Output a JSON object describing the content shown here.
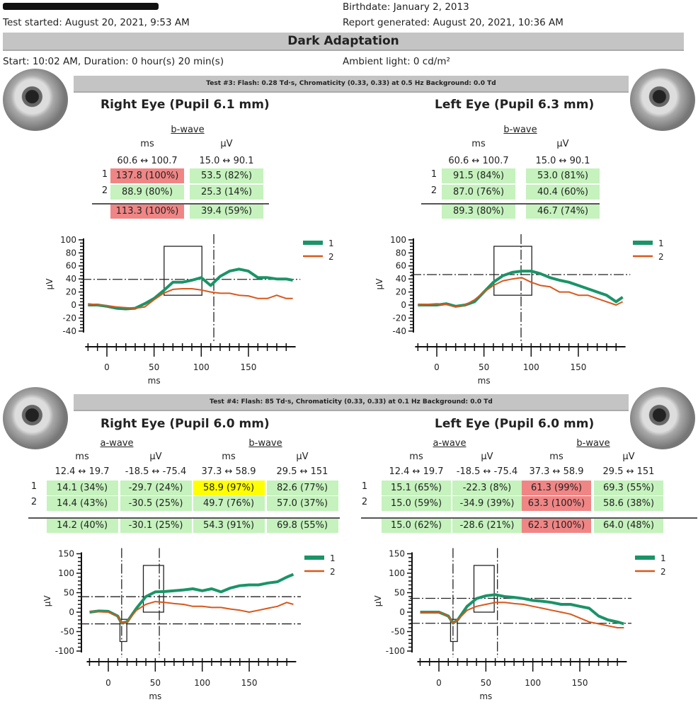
{
  "header": {
    "birthdate": "Birthdate: January 2, 2013",
    "test_started": "Test started: August 20, 2021, 9:53 AM",
    "report_generated": "Report generated: August 20, 2021, 10:36 AM",
    "section_title": "Dark Adaptation",
    "start_info": "Start: 10:02 AM, Duration: 0 hour(s) 20 min(s)",
    "ambient_light": "Ambient light: 0 cd/m²"
  },
  "colors": {
    "series1": "#1a9468",
    "series2": "#d8581c",
    "normal": "#c5f2bd",
    "abnormal": "#f08585",
    "borderline": "#ffff00"
  },
  "tests": [
    {
      "banner": "Test #3:  Flash: 0.28 Td·s, Chromaticity (0.33, 0.33) at 0.5 Hz   Background: 0.0 Td",
      "right": {
        "title": "Right Eye (Pupil 6.1 mm)",
        "waves": [
          "b-wave"
        ],
        "units": [
          "ms",
          "µV"
        ],
        "ranges": [
          "60.6 ↔ 100.7",
          "15.0 ↔ 90.1"
        ],
        "rows": [
          {
            "label": "1",
            "cells": [
              {
                "text": "137.8 (100%)",
                "status": "red"
              },
              {
                "text": "53.5 (82%)",
                "status": "green"
              }
            ]
          },
          {
            "label": "2",
            "cells": [
              {
                "text": "88.9 (80%)",
                "status": "green"
              },
              {
                "text": "25.3 (14%)",
                "status": "green"
              }
            ]
          },
          {
            "label": "",
            "cells": [
              {
                "text": "113.3 (100%)",
                "status": "red"
              },
              {
                "text": "39.4 (59%)",
                "status": "green"
              }
            ]
          }
        ]
      },
      "left": {
        "title": "Left Eye (Pupil 6.3 mm)",
        "waves": [
          "b-wave"
        ],
        "units": [
          "ms",
          "µV"
        ],
        "ranges": [
          "60.6 ↔ 100.7",
          "15.0 ↔ 90.1"
        ],
        "rows": [
          {
            "label": "1",
            "cells": [
              {
                "text": "91.5 (84%)",
                "status": "green"
              },
              {
                "text": "53.0 (81%)",
                "status": "green"
              }
            ]
          },
          {
            "label": "2",
            "cells": [
              {
                "text": "87.0 (76%)",
                "status": "green"
              },
              {
                "text": "40.4 (60%)",
                "status": "green"
              }
            ]
          },
          {
            "label": "",
            "cells": [
              {
                "text": "89.3 (80%)",
                "status": "green"
              },
              {
                "text": "46.7 (74%)",
                "status": "green"
              }
            ]
          }
        ]
      }
    },
    {
      "banner": "Test #4:  Flash: 85 Td·s, Chromaticity (0.33, 0.33) at 0.1 Hz   Background: 0.0 Td",
      "right": {
        "title": "Right Eye (Pupil 6.0 mm)",
        "waves": [
          "a-wave",
          "b-wave"
        ],
        "units": [
          "ms",
          "µV",
          "ms",
          "µV"
        ],
        "ranges": [
          "12.4 ↔ 19.7",
          "-18.5 ↔ -75.4",
          "37.3 ↔ 58.9",
          "29.5 ↔ 151"
        ],
        "rows": [
          {
            "label": "1",
            "cells": [
              {
                "text": "14.1 (34%)",
                "status": "green"
              },
              {
                "text": "-29.7 (24%)",
                "status": "green"
              },
              {
                "text": "58.9 (97%)",
                "status": "yellow"
              },
              {
                "text": "82.6 (77%)",
                "status": "green"
              }
            ]
          },
          {
            "label": "2",
            "cells": [
              {
                "text": "14.4 (43%)",
                "status": "green"
              },
              {
                "text": "-30.5 (25%)",
                "status": "green"
              },
              {
                "text": "49.7 (76%)",
                "status": "green"
              },
              {
                "text": "57.0 (37%)",
                "status": "green"
              }
            ]
          },
          {
            "label": "",
            "cells": [
              {
                "text": "14.2 (40%)",
                "status": "green"
              },
              {
                "text": "-30.1 (25%)",
                "status": "green"
              },
              {
                "text": "54.3 (91%)",
                "status": "green"
              },
              {
                "text": "69.8 (55%)",
                "status": "green"
              }
            ]
          }
        ]
      },
      "left": {
        "title": "Left Eye (Pupil 6.0 mm)",
        "waves": [
          "a-wave",
          "b-wave"
        ],
        "units": [
          "ms",
          "µV",
          "ms",
          "µV"
        ],
        "ranges": [
          "12.4 ↔ 19.7",
          "-18.5 ↔ -75.4",
          "37.3 ↔ 58.9",
          "29.5 ↔ 151"
        ],
        "rows": [
          {
            "label": "1",
            "cells": [
              {
                "text": "15.1 (65%)",
                "status": "green"
              },
              {
                "text": "-22.3 (8%)",
                "status": "green"
              },
              {
                "text": "61.3 (99%)",
                "status": "red"
              },
              {
                "text": "69.3 (55%)",
                "status": "green"
              }
            ]
          },
          {
            "label": "2",
            "cells": [
              {
                "text": "15.0 (59%)",
                "status": "green"
              },
              {
                "text": "-34.9 (39%)",
                "status": "green"
              },
              {
                "text": "63.3 (100%)",
                "status": "red"
              },
              {
                "text": "58.6 (38%)",
                "status": "green"
              }
            ]
          },
          {
            "label": "",
            "cells": [
              {
                "text": "15.0 (62%)",
                "status": "green"
              },
              {
                "text": "-28.6 (21%)",
                "status": "green"
              },
              {
                "text": "62.3 (100%)",
                "status": "red"
              },
              {
                "text": "64.0 (48%)",
                "status": "green"
              }
            ]
          }
        ]
      }
    }
  ],
  "chart_data": [
    {
      "type": "line",
      "panel": "Test #3 Right Eye",
      "xlabel": "ms",
      "ylabel": "µV",
      "xlim": [
        -20,
        200
      ],
      "ylim": [
        -40,
        100
      ],
      "xticks": [
        0,
        50,
        100,
        150
      ],
      "yticks": [
        -40,
        -20,
        0,
        20,
        40,
        60,
        80,
        100
      ],
      "legend": "top-right",
      "ref_lines": {
        "x": [
          113.3
        ],
        "y": [
          39.4
        ]
      },
      "boxes": [
        {
          "x": [
            60.6,
            100.7
          ],
          "y": [
            15.0,
            90.1
          ]
        }
      ],
      "x": [
        -20,
        -10,
        0,
        10,
        20,
        30,
        40,
        50,
        60,
        70,
        80,
        90,
        100,
        110,
        120,
        130,
        140,
        150,
        160,
        170,
        180,
        190,
        197
      ],
      "series": [
        {
          "name": "1",
          "values": [
            0,
            0,
            -2,
            -5,
            -6,
            -5,
            2,
            10,
            22,
            35,
            35,
            38,
            42,
            30,
            44,
            52,
            55,
            52,
            42,
            42,
            40,
            40,
            38
          ]
        },
        {
          "name": "2",
          "values": [
            2,
            0,
            -1,
            -3,
            -4,
            -5,
            -3,
            8,
            18,
            24,
            25,
            25,
            23,
            20,
            18,
            18,
            15,
            14,
            10,
            10,
            15,
            10,
            10
          ]
        }
      ]
    },
    {
      "type": "line",
      "panel": "Test #3 Left Eye",
      "xlabel": "ms",
      "ylabel": "µV",
      "xlim": [
        -20,
        200
      ],
      "ylim": [
        -40,
        100
      ],
      "xticks": [
        0,
        50,
        100,
        150
      ],
      "yticks": [
        -40,
        -20,
        0,
        20,
        40,
        60,
        80,
        100
      ],
      "legend": "top-right",
      "ref_lines": {
        "x": [
          89.3
        ],
        "y": [
          46.7
        ]
      },
      "boxes": [
        {
          "x": [
            60.6,
            100.7
          ],
          "y": [
            15.0,
            90.1
          ]
        }
      ],
      "x": [
        -20,
        -10,
        0,
        10,
        20,
        30,
        40,
        50,
        60,
        70,
        80,
        90,
        100,
        110,
        120,
        130,
        140,
        150,
        160,
        170,
        180,
        190,
        197
      ],
      "series": [
        {
          "name": "1",
          "values": [
            0,
            0,
            0,
            2,
            -2,
            0,
            5,
            20,
            35,
            45,
            50,
            52,
            52,
            48,
            42,
            38,
            35,
            30,
            25,
            20,
            15,
            5,
            12
          ]
        },
        {
          "name": "2",
          "values": [
            0,
            1,
            2,
            1,
            -3,
            0,
            8,
            20,
            30,
            37,
            40,
            42,
            35,
            30,
            28,
            20,
            20,
            15,
            15,
            10,
            5,
            0,
            5
          ]
        }
      ]
    },
    {
      "type": "line",
      "panel": "Test #4 Right Eye",
      "xlabel": "ms",
      "ylabel": "µV",
      "xlim": [
        -20,
        200
      ],
      "ylim": [
        -100,
        150
      ],
      "xticks": [
        0,
        50,
        100,
        150
      ],
      "yticks": [
        -100,
        -50,
        0,
        50,
        100,
        150
      ],
      "legend": "top-right",
      "ref_lines": {
        "x": [
          14.2,
          54.3
        ],
        "y": [
          -30.1,
          39.7
        ]
      },
      "boxes": [
        {
          "x": [
            12.4,
            19.7
          ],
          "y": [
            -18.5,
            -75.4
          ]
        },
        {
          "x": [
            37.3,
            58.9
          ],
          "y": [
            0,
            120
          ]
        }
      ],
      "x": [
        -20,
        -10,
        0,
        10,
        14,
        20,
        30,
        40,
        50,
        60,
        70,
        80,
        90,
        100,
        110,
        120,
        130,
        140,
        150,
        160,
        170,
        180,
        190,
        197
      ],
      "series": [
        {
          "name": "1",
          "values": [
            0,
            3,
            2,
            -10,
            -28,
            -25,
            10,
            40,
            52,
            53,
            55,
            57,
            60,
            55,
            60,
            52,
            62,
            68,
            70,
            70,
            75,
            78,
            90,
            97
          ]
        },
        {
          "name": "2",
          "values": [
            2,
            1,
            0,
            -10,
            -28,
            -25,
            5,
            20,
            27,
            25,
            22,
            20,
            15,
            15,
            12,
            12,
            8,
            5,
            0,
            5,
            10,
            15,
            25,
            20
          ]
        }
      ]
    },
    {
      "type": "line",
      "panel": "Test #4 Left Eye",
      "xlabel": "ms",
      "ylabel": "µV",
      "xlim": [
        -20,
        200
      ],
      "ylim": [
        -100,
        150
      ],
      "xticks": [
        0,
        50,
        100,
        150
      ],
      "yticks": [
        -100,
        -50,
        0,
        50,
        100,
        150
      ],
      "legend": "top-right",
      "ref_lines": {
        "x": [
          15.0,
          62.3
        ],
        "y": [
          -28.6,
          35.4
        ]
      },
      "boxes": [
        {
          "x": [
            12.4,
            19.7
          ],
          "y": [
            -18.5,
            -75.4
          ]
        },
        {
          "x": [
            37.3,
            58.9
          ],
          "y": [
            0,
            120
          ]
        }
      ],
      "x": [
        -20,
        -10,
        0,
        10,
        15,
        20,
        30,
        40,
        50,
        60,
        70,
        80,
        90,
        100,
        110,
        120,
        130,
        140,
        150,
        160,
        170,
        180,
        190,
        197
      ],
      "series": [
        {
          "name": "1",
          "values": [
            0,
            0,
            0,
            -10,
            -28,
            -20,
            15,
            35,
            42,
            45,
            40,
            38,
            35,
            30,
            28,
            25,
            20,
            20,
            15,
            10,
            -10,
            -20,
            -25,
            -30
          ]
        },
        {
          "name": "2",
          "values": [
            0,
            0,
            0,
            -10,
            -28,
            -20,
            5,
            15,
            20,
            25,
            25,
            22,
            20,
            15,
            10,
            5,
            0,
            -5,
            -15,
            -25,
            -30,
            -35,
            -40,
            -40
          ]
        }
      ]
    }
  ]
}
